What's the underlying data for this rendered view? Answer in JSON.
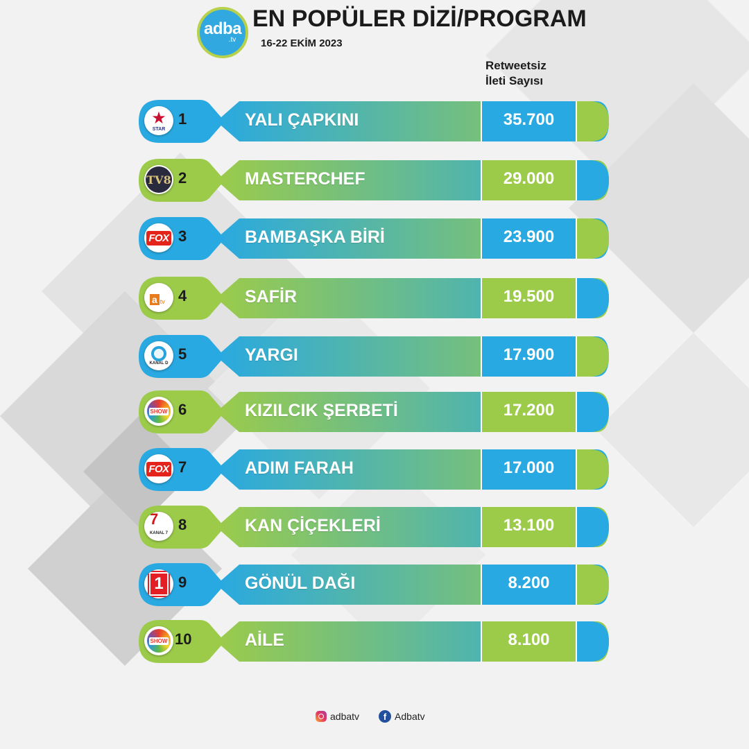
{
  "header": {
    "logo_main": "adba",
    "logo_sub": ".tv",
    "title": "EN POPÜLER DİZİ/PROGRAM",
    "date": "16-22 EKİM 2023",
    "column_header_line1": "Retweetsiz",
    "column_header_line2": "İleti Sayısı"
  },
  "colors": {
    "blue": "#29a9e1",
    "green": "#9ccb4a",
    "text_dark": "#1b1b1b"
  },
  "rows": [
    {
      "rank": "1",
      "name": "YALI ÇAPKINI",
      "value": "35.700",
      "channel": "Star",
      "icon": "star-tv-logo"
    },
    {
      "rank": "2",
      "name": "MASTERCHEF",
      "value": "29.000",
      "channel": "TV8",
      "icon": "tv8-logo"
    },
    {
      "rank": "3",
      "name": "BAMBAŞKA BİRİ",
      "value": "23.900",
      "channel": "FOX",
      "icon": "fox-logo"
    },
    {
      "rank": "4",
      "name": "SAFİR",
      "value": "19.500",
      "channel": "atv",
      "icon": "atv-logo"
    },
    {
      "rank": "5",
      "name": "YARGI",
      "value": "17.900",
      "channel": "Kanal D",
      "icon": "kanal-d-logo"
    },
    {
      "rank": "6",
      "name": "KIZILCIK ŞERBETİ",
      "value": "17.200",
      "channel": "SHOW",
      "icon": "show-tv-logo"
    },
    {
      "rank": "7",
      "name": "ADIM FARAH",
      "value": "17.000",
      "channel": "FOX",
      "icon": "fox-logo"
    },
    {
      "rank": "8",
      "name": "KAN ÇİÇEKLERİ",
      "value": "13.100",
      "channel": "Kanal 7",
      "icon": "kanal-7-logo"
    },
    {
      "rank": "9",
      "name": "GÖNÜL DAĞI",
      "value": "8.200",
      "channel": "TRT 1",
      "icon": "trt1-logo"
    },
    {
      "rank": "10",
      "name": "AİLE",
      "value": "8.100",
      "channel": "SHOW",
      "icon": "show-tv-logo"
    }
  ],
  "channel_logo_text": {
    "fox": "FOX",
    "tv8": "TV8",
    "atv_a": "a",
    "atv_tv": "tv",
    "kanal7_num": "7",
    "kanal7_label": "KANAL 7",
    "trt1": "1",
    "show": "SHOW",
    "star": "★",
    "star_label": "STAR",
    "kanald_label": "KANAL D"
  },
  "footer": {
    "instagram": "adbatv",
    "facebook": "Adbatv",
    "fb_letter": "f"
  }
}
